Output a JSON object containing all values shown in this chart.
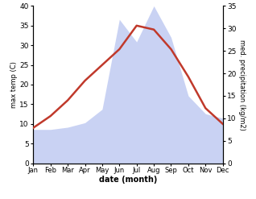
{
  "months": [
    "Jan",
    "Feb",
    "Mar",
    "Apr",
    "May",
    "Jun",
    "Jul",
    "Aug",
    "Sep",
    "Oct",
    "Nov",
    "Dec"
  ],
  "max_temp": [
    9,
    12,
    16,
    21,
    25,
    29,
    35,
    34,
    29,
    22,
    14,
    10
  ],
  "precipitation": [
    7.5,
    7.5,
    8,
    9,
    12,
    32,
    27,
    35,
    28,
    15,
    11,
    10
  ],
  "temp_ylim": [
    0,
    40
  ],
  "precip_ylim": [
    0,
    35
  ],
  "temp_color": "#c0392b",
  "precip_fill_color": "#b8c4f0",
  "xlabel": "date (month)",
  "ylabel_left": "max temp (C)",
  "ylabel_right": "med. precipitation (kg/m2)",
  "temp_linewidth": 1.8,
  "background_color": "#ffffff"
}
